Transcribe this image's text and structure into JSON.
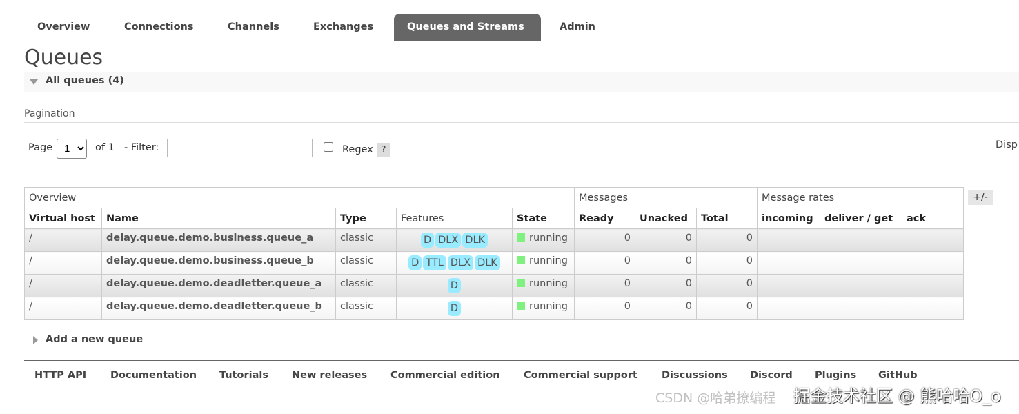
{
  "tabs": [
    "Overview",
    "Connections",
    "Channels",
    "Exchanges",
    "Queues and Streams",
    "Admin"
  ],
  "active_tab": "Queues and Streams",
  "page_title": "Queues",
  "section_label": "All queues (4)",
  "pagination": {
    "label": "Pagination",
    "page_label": "Page",
    "page_value": "1",
    "of_label": "of 1",
    "filter_label": "- Filter:",
    "filter_value": "",
    "regex_label": "Regex",
    "help": "?",
    "display_label": "Disp"
  },
  "table": {
    "groups": [
      "Overview",
      "Messages",
      "Message rates"
    ],
    "columns": [
      "Virtual host",
      "Name",
      "Type",
      "Features",
      "State",
      "Ready",
      "Unacked",
      "Total",
      "incoming",
      "deliver / get",
      "ack"
    ],
    "rows": [
      {
        "vhost": "/",
        "name": "delay.queue.demo.business.queue_a",
        "type": "classic",
        "features": [
          "D",
          "DLX",
          "DLK"
        ],
        "state": "running",
        "ready": "0",
        "unacked": "0",
        "total": "0"
      },
      {
        "vhost": "/",
        "name": "delay.queue.demo.business.queue_b",
        "type": "classic",
        "features": [
          "D",
          "TTL",
          "DLX",
          "DLK"
        ],
        "state": "running",
        "ready": "0",
        "unacked": "0",
        "total": "0"
      },
      {
        "vhost": "/",
        "name": "delay.queue.demo.deadletter.queue_a",
        "type": "classic",
        "features": [
          "D"
        ],
        "state": "running",
        "ready": "0",
        "unacked": "0",
        "total": "0"
      },
      {
        "vhost": "/",
        "name": "delay.queue.demo.deadletter.queue_b",
        "type": "classic",
        "features": [
          "D"
        ],
        "state": "running",
        "ready": "0",
        "unacked": "0",
        "total": "0"
      }
    ],
    "toggle_columns": "+/-"
  },
  "add_queue": "Add a new queue",
  "footer": [
    "HTTP API",
    "Documentation",
    "Tutorials",
    "New releases",
    "Commercial edition",
    "Commercial support",
    "Discussions",
    "Discord",
    "Plugins",
    "GitHub"
  ],
  "watermarks": [
    "掘金技术社区 @ 熊哈哈O_o",
    "CSDN @哈弟撩编程"
  ],
  "colors": {
    "active_tab": "#666666",
    "badge": "#99ebff",
    "running": "#80f080"
  }
}
